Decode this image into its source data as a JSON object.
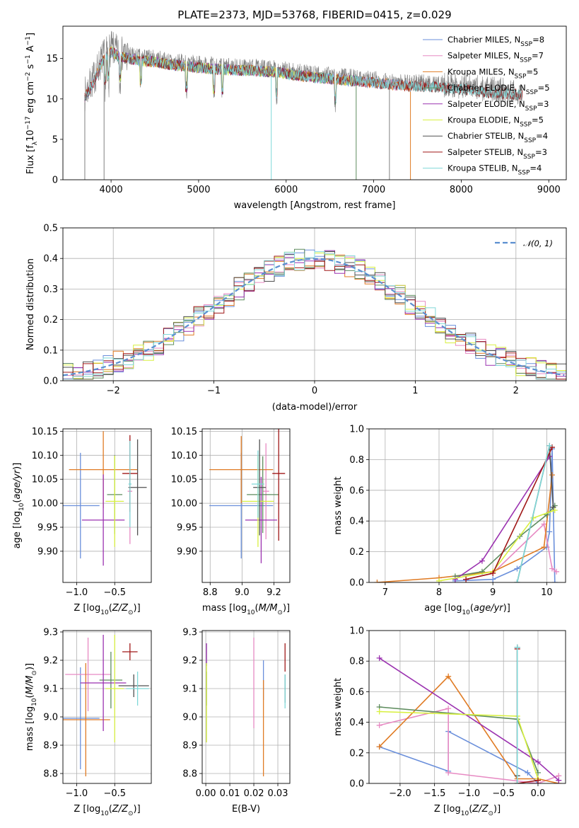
{
  "colors": {
    "Chabrier MILES": "#6a8fdb",
    "Salpeter MILES": "#e78ac3",
    "Kroupa MILES": "#e07b24",
    "Chabrier ELODIE": "#5e8c5e",
    "Salpeter ELODIE": "#9b32b0",
    "Kroupa ELODIE": "#d8f040",
    "Chabrier STELIB": "#505050",
    "Salpeter STELIB": "#a01818",
    "Kroupa STELIB": "#7fd8d8",
    "data": "#808080",
    "normal": "#5b8fd0"
  },
  "chart_data": [
    {
      "id": "spectrum",
      "type": "line",
      "title": "PLATE=2373, MJD=53768, FIBERID=0415, z=0.029",
      "xlabel": "wavelength [Angstrom, rest frame]",
      "ylabel_parts": [
        "Flux [f",
        "λ",
        "10",
        "−17",
        " erg cm",
        "−2",
        " s",
        "−1",
        " A",
        "−1",
        "]"
      ],
      "xlim": [
        3450,
        9200
      ],
      "ylim": [
        0,
        19
      ],
      "xticks": [
        "4000",
        "5000",
        "6000",
        "7000",
        "8000",
        "9000"
      ],
      "yticks": [
        "0",
        "5",
        "10",
        "15"
      ],
      "grid": false,
      "legend_position": "top-right",
      "series": [
        {
          "name": "Chabrier MILES",
          "nssp": "8",
          "range": [
            3700,
            7420
          ]
        },
        {
          "name": "Salpeter MILES",
          "nssp": "7",
          "range": [
            3700,
            7420
          ]
        },
        {
          "name": "Kroupa MILES",
          "nssp": "5",
          "range": [
            3700,
            7420
          ]
        },
        {
          "name": "Chabrier ELODIE",
          "nssp": "5",
          "range": [
            3900,
            6800
          ]
        },
        {
          "name": "Salpeter ELODIE",
          "nssp": "3",
          "range": [
            3900,
            6800
          ]
        },
        {
          "name": "Kroupa ELODIE",
          "nssp": "5",
          "range": [
            3900,
            6800
          ]
        },
        {
          "name": "Chabrier STELIB",
          "nssp": "4",
          "range": [
            3700,
            8700
          ]
        },
        {
          "name": "Salpeter STELIB",
          "nssp": "3",
          "range": [
            3700,
            8700
          ]
        },
        {
          "name": "Kroupa STELIB",
          "nssp": "4",
          "range": [
            3700,
            8700
          ]
        }
      ],
      "data_envelope": {
        "x": [
          3700,
          3800,
          3900,
          4000,
          4100,
          4300,
          4500,
          4700,
          5000,
          5300,
          5600,
          5900,
          6200,
          6500,
          6800,
          7100,
          7400,
          7700,
          8000,
          8300,
          8600,
          8700
        ],
        "y": [
          10.5,
          12.5,
          15.0,
          16.2,
          15.6,
          15.2,
          15.0,
          14.6,
          14.3,
          14.0,
          13.9,
          13.7,
          13.2,
          12.9,
          12.6,
          12.3,
          12.0,
          11.9,
          11.6,
          11.2,
          11.0,
          10.8
        ]
      }
    },
    {
      "id": "residuals",
      "type": "histogram",
      "xlabel": "(data-model)/error",
      "ylabel": "Normed distribution",
      "xlim": [
        -2.5,
        2.5
      ],
      "ylim": [
        0,
        0.5
      ],
      "xticks": [
        "−2",
        "−1",
        "0",
        "1",
        "2"
      ],
      "yticks": [
        "0.0",
        "0.1",
        "0.2",
        "0.3",
        "0.4",
        "0.5"
      ],
      "grid": true,
      "legend_position": "top-right",
      "bin_width": 0.1,
      "normal_label": "𝒩(0, 1)",
      "normal_mean": 0,
      "normal_sigma": 1
    },
    {
      "id": "age-vs-z",
      "type": "errorbar",
      "xlabel": "Z [log10(Z/Z⊙)]",
      "ylabel": "age  [log10(age/yr)]",
      "xlim": [
        -1.18,
        -0.02
      ],
      "ylim": [
        9.835,
        10.155
      ],
      "xticks": [
        {
          "v": -1.0,
          "t": "−1.0"
        },
        {
          "v": -0.5,
          "t": "−0.5"
        }
      ],
      "yticks": [
        {
          "v": 9.9,
          "t": "9.90"
        },
        {
          "v": 9.95,
          "t": "9.95"
        },
        {
          "v": 10.0,
          "t": "10.00"
        },
        {
          "v": 10.05,
          "t": "10.05"
        },
        {
          "v": 10.1,
          "t": "10.10"
        },
        {
          "v": 10.15,
          "t": "10.15"
        }
      ],
      "grid": true,
      "points": [
        {
          "s": "Chabrier MILES",
          "x": -0.95,
          "xerr": 0.25,
          "y": 9.995,
          "yerr": 0.11
        },
        {
          "s": "Salpeter MILES",
          "x": -0.3,
          "xerr": 0.03,
          "y": 10.025,
          "yerr": 0.11
        },
        {
          "s": "Kroupa MILES",
          "x": -0.65,
          "xerr": 0.45,
          "y": 10.07,
          "yerr": 0.08
        },
        {
          "s": "Chabrier ELODIE",
          "x": -0.5,
          "xerr": 0.1,
          "y": 10.018,
          "yerr": 0.082
        },
        {
          "s": "Salpeter ELODIE",
          "x": -0.65,
          "xerr": 0.28,
          "y": 9.965,
          "yerr": 0.095
        },
        {
          "s": "Kroupa ELODIE",
          "x": -0.5,
          "xerr": 0.12,
          "y": 10.004,
          "yerr": 0.095
        },
        {
          "s": "Chabrier STELIB",
          "x": -0.2,
          "xerr": 0.12,
          "y": 10.033,
          "yerr": 0.1
        },
        {
          "s": "Salpeter STELIB",
          "x": -0.3,
          "xerr": 0.1,
          "y": 10.062,
          "yerr": 0.08
        },
        {
          "s": "Kroupa STELIB",
          "x": -0.3,
          "xerr": 0.02,
          "y": 10.04,
          "yerr": 0.09
        }
      ]
    },
    {
      "id": "age-vs-mass",
      "type": "errorbar",
      "xlabel": "mass [log10(M/M⊙)]",
      "ylabel": "",
      "xlim": [
        8.75,
        9.3
      ],
      "ylim": [
        9.835,
        10.155
      ],
      "xticks": [
        {
          "v": 8.8,
          "t": "8.8"
        },
        {
          "v": 9.0,
          "t": "9.0"
        },
        {
          "v": 9.2,
          "t": "9.2"
        }
      ],
      "yticks": [
        {
          "v": 9.9,
          "t": "9.90"
        },
        {
          "v": 9.95,
          "t": "9.95"
        },
        {
          "v": 10.0,
          "t": "10.00"
        },
        {
          "v": 10.05,
          "t": "10.05"
        },
        {
          "v": 10.1,
          "t": "10.10"
        },
        {
          "v": 10.15,
          "t": "10.15"
        }
      ],
      "grid": true,
      "points": [
        {
          "s": "Chabrier MILES",
          "x": 8.995,
          "xerr": 0.2,
          "y": 9.995,
          "yerr": 0.11
        },
        {
          "s": "Salpeter MILES",
          "x": 9.15,
          "xerr": 0.02,
          "y": 10.025,
          "yerr": 0.1
        },
        {
          "s": "Kroupa MILES",
          "x": 8.995,
          "xerr": 0.2,
          "y": 10.07,
          "yerr": 0.07
        },
        {
          "s": "Chabrier ELODIE",
          "x": 9.13,
          "xerr": 0.1,
          "y": 10.018,
          "yerr": 0.08
        },
        {
          "s": "Salpeter ELODIE",
          "x": 9.12,
          "xerr": 0.1,
          "y": 9.965,
          "yerr": 0.09
        },
        {
          "s": "Kroupa ELODIE",
          "x": 9.1,
          "xerr": 0.1,
          "y": 10.004,
          "yerr": 0.095
        },
        {
          "s": "Chabrier STELIB",
          "x": 9.11,
          "xerr": 0.04,
          "y": 10.033,
          "yerr": 0.1
        },
        {
          "s": "Salpeter STELIB",
          "x": 9.23,
          "xerr": 0.04,
          "y": 10.062,
          "yerr": 0.14
        },
        {
          "s": "Kroupa STELIB",
          "x": 9.1,
          "xerr": 0.04,
          "y": 10.04,
          "yerr": 0.07
        }
      ]
    },
    {
      "id": "weight-vs-age",
      "type": "line",
      "xlabel": "age  [log10(age/yr)]",
      "ylabel": "mass weight",
      "xlim": [
        6.7,
        10.35
      ],
      "ylim": [
        0,
        1
      ],
      "xticks": [
        {
          "v": 7,
          "t": "7"
        },
        {
          "v": 8,
          "t": "8"
        },
        {
          "v": 9,
          "t": "9"
        },
        {
          "v": 10,
          "t": "10"
        }
      ],
      "yticks": [
        {
          "v": 0,
          "t": "0.0"
        },
        {
          "v": 0.2,
          "t": "0.2"
        },
        {
          "v": 0.4,
          "t": "0.4"
        },
        {
          "v": 0.6,
          "t": "0.6"
        },
        {
          "v": 0.8,
          "t": "0.8"
        },
        {
          "v": 1.0,
          "t": "1.0"
        }
      ],
      "grid": true,
      "series": [
        {
          "name": "Chabrier MILES",
          "x": [
            8.3,
            9.0,
            9.45,
            10.0,
            10.05,
            10.1,
            10.15
          ],
          "y": [
            0.01,
            0.02,
            0.09,
            0.23,
            0.33,
            0.87,
            0.0
          ]
        },
        {
          "name": "Salpeter MILES",
          "x": [
            8.5,
            9.0,
            9.95,
            10.1,
            10.18
          ],
          "y": [
            0.02,
            0.06,
            0.38,
            0.09,
            0.07
          ]
        },
        {
          "name": "Kroupa MILES",
          "x": [
            6.85,
            8.0,
            9.0,
            9.95,
            10.1
          ],
          "y": [
            0.0,
            0.03,
            0.07,
            0.23,
            0.7
          ]
        },
        {
          "name": "Chabrier ELODIE",
          "x": [
            8.3,
            8.8,
            9.5,
            10.0,
            10.15
          ],
          "y": [
            0.04,
            0.07,
            0.3,
            0.44,
            0.5
          ]
        },
        {
          "name": "Salpeter ELODIE",
          "x": [
            8.3,
            8.8,
            10.05
          ],
          "y": [
            0.02,
            0.14,
            0.82
          ]
        },
        {
          "name": "Kroupa ELODIE",
          "x": [
            8.0,
            9.0,
            9.75,
            10.15
          ],
          "y": [
            0.01,
            0.07,
            0.42,
            0.47
          ]
        },
        {
          "name": "Chabrier STELIB",
          "x": [
            9.45,
            10.05,
            10.12
          ],
          "y": [
            0.0,
            0.89,
            0.49
          ]
        },
        {
          "name": "Salpeter STELIB",
          "x": [
            8.5,
            9.0,
            10.1
          ],
          "y": [
            0.02,
            0.06,
            0.88
          ]
        },
        {
          "name": "Kroupa STELIB",
          "x": [
            9.45,
            10.05
          ],
          "y": [
            0.0,
            0.89
          ]
        }
      ]
    },
    {
      "id": "mass-vs-z",
      "type": "errorbar",
      "xlabel": "Z [log10(Z/Z⊙)]",
      "ylabel": "mass [log10(M/M⊙)]",
      "xlim": [
        -1.18,
        -0.02
      ],
      "ylim": [
        8.765,
        9.305
      ],
      "xticks": [
        {
          "v": -1.0,
          "t": "−1.0"
        },
        {
          "v": -0.5,
          "t": "−0.5"
        }
      ],
      "yticks": [
        {
          "v": 8.8,
          "t": "8.8"
        },
        {
          "v": 8.9,
          "t": "8.9"
        },
        {
          "v": 9.0,
          "t": "9.0"
        },
        {
          "v": 9.1,
          "t": "9.1"
        },
        {
          "v": 9.2,
          "t": "9.2"
        },
        {
          "v": 9.3,
          "t": "9.3"
        }
      ],
      "grid": true,
      "points": [
        {
          "s": "Chabrier MILES",
          "x": -0.95,
          "xerr": 0.25,
          "y": 8.995,
          "yerr": 0.18
        },
        {
          "s": "Salpeter MILES",
          "x": -0.85,
          "xerr": 0.3,
          "y": 9.15,
          "yerr": 0.13
        },
        {
          "s": "Kroupa MILES",
          "x": -0.88,
          "xerr": 0.32,
          "y": 8.99,
          "yerr": 0.2
        },
        {
          "s": "Chabrier ELODIE",
          "x": -0.55,
          "xerr": 0.15,
          "y": 9.13,
          "yerr": 0.1
        },
        {
          "s": "Salpeter ELODIE",
          "x": -0.65,
          "xerr": 0.3,
          "y": 9.12,
          "yerr": 0.17
        },
        {
          "s": "Kroupa ELODIE",
          "x": -0.5,
          "xerr": 0.12,
          "y": 9.1,
          "yerr": 0.19
        },
        {
          "s": "Chabrier STELIB",
          "x": -0.25,
          "xerr": 0.2,
          "y": 9.11,
          "yerr": 0.04
        },
        {
          "s": "Salpeter STELIB",
          "x": -0.3,
          "xerr": 0.1,
          "y": 9.23,
          "yerr": 0.03
        },
        {
          "s": "Kroupa STELIB",
          "x": -0.2,
          "xerr": 0.15,
          "y": 9.1,
          "yerr": 0.06
        }
      ]
    },
    {
      "id": "mass-vs-ebv",
      "type": "errorbar",
      "xlabel": "E(B-V)",
      "ylabel": "",
      "xlim": [
        -0.0015,
        0.035
      ],
      "ylim": [
        8.765,
        9.305
      ],
      "xticks": [
        {
          "v": 0.0,
          "t": "0.00"
        },
        {
          "v": 0.01,
          "t": "0.01"
        },
        {
          "v": 0.02,
          "t": "0.02"
        },
        {
          "v": 0.03,
          "t": "0.03"
        }
      ],
      "yticks": [
        {
          "v": 8.8,
          "t": "8.8"
        },
        {
          "v": 8.9,
          "t": "8.9"
        },
        {
          "v": 9.0,
          "t": "9.0"
        },
        {
          "v": 9.1,
          "t": "9.1"
        },
        {
          "v": 9.2,
          "t": "9.2"
        },
        {
          "v": 9.3,
          "t": "9.3"
        }
      ],
      "grid": true,
      "points": [
        {
          "s": "Chabrier MILES",
          "x": 0.024,
          "xerr": 0,
          "y": 9.13,
          "yerr": 0.07
        },
        {
          "s": "Salpeter MILES",
          "x": 0.02,
          "xerr": 0,
          "y": 9.12,
          "yerr": 0.16
        },
        {
          "s": "Kroupa MILES",
          "x": 0.024,
          "xerr": 0,
          "y": 8.96,
          "yerr": 0.17
        },
        {
          "s": "Chabrier ELODIE",
          "x": 0.0003,
          "xerr": 0,
          "y": 9.1,
          "yerr": 0.06
        },
        {
          "s": "Salpeter ELODIE",
          "x": 0.0003,
          "xerr": 0,
          "y": 9.22,
          "yerr": 0.04
        },
        {
          "s": "Kroupa ELODIE",
          "x": 0.0003,
          "xerr": 0,
          "y": 9.05,
          "yerr": 0.14
        },
        {
          "s": "Chabrier STELIB",
          "x": 0.033,
          "xerr": 0,
          "y": 9.1,
          "yerr": 0.05
        },
        {
          "s": "Salpeter STELIB",
          "x": 0.033,
          "xerr": 0,
          "y": 9.21,
          "yerr": 0.05
        },
        {
          "s": "Kroupa STELIB",
          "x": 0.033,
          "xerr": 0,
          "y": 9.09,
          "yerr": 0.06
        }
      ]
    },
    {
      "id": "weight-vs-z",
      "type": "line",
      "xlabel": "Z [log10(Z/Z⊙)]",
      "ylabel": "mass weight",
      "xlim": [
        -2.45,
        0.4
      ],
      "ylim": [
        0,
        1
      ],
      "xticks": [
        {
          "v": -2.0,
          "t": "−2.0"
        },
        {
          "v": -1.5,
          "t": "−1.5"
        },
        {
          "v": -1.0,
          "t": "−1.0"
        },
        {
          "v": -0.5,
          "t": "−0.5"
        },
        {
          "v": 0.0,
          "t": "0.0"
        }
      ],
      "yticks": [
        {
          "v": 0,
          "t": "0.0"
        },
        {
          "v": 0.2,
          "t": "0.2"
        },
        {
          "v": 0.4,
          "t": "0.4"
        },
        {
          "v": 0.6,
          "t": "0.6"
        },
        {
          "v": 0.8,
          "t": "0.8"
        },
        {
          "v": 1.0,
          "t": "1.0"
        }
      ],
      "grid": true,
      "series": [
        {
          "name": "Chabrier MILES",
          "x": [
            -2.3,
            -1.3,
            -1.3,
            -0.15,
            0.0
          ],
          "y": [
            0.24,
            0.08,
            0.34,
            0.07,
            0.0
          ]
        },
        {
          "name": "Salpeter MILES",
          "x": [
            -2.3,
            -1.3,
            -1.3,
            0.0,
            0.3
          ],
          "y": [
            0.38,
            0.49,
            0.07,
            0.0,
            0.05
          ]
        },
        {
          "name": "Kroupa MILES",
          "x": [
            -2.3,
            -1.3,
            -0.3,
            0.0,
            0.3
          ],
          "y": [
            0.24,
            0.7,
            0.03,
            0.03,
            0.0
          ]
        },
        {
          "name": "Chabrier ELODIE",
          "x": [
            -2.3,
            -0.3,
            0.0
          ],
          "y": [
            0.5,
            0.42,
            0.07
          ]
        },
        {
          "name": "Salpeter ELODIE",
          "x": [
            -2.3,
            0.0,
            0.3
          ],
          "y": [
            0.82,
            0.14,
            0.02
          ]
        },
        {
          "name": "Kroupa ELODIE",
          "x": [
            -2.3,
            -0.3,
            0.0
          ],
          "y": [
            0.47,
            0.44,
            0.03
          ]
        },
        {
          "name": "Chabrier STELIB",
          "x": [
            -0.3,
            -0.3,
            -0.3
          ],
          "y": [
            0.89,
            0.0,
            0.05
          ]
        },
        {
          "name": "Salpeter STELIB",
          "x": [
            -0.3,
            -0.3,
            0.0
          ],
          "y": [
            0.88,
            0.0,
            0.02
          ]
        },
        {
          "name": "Kroupa STELIB",
          "x": [
            -0.3,
            -0.3
          ],
          "y": [
            0.89,
            0.0
          ]
        }
      ]
    }
  ]
}
